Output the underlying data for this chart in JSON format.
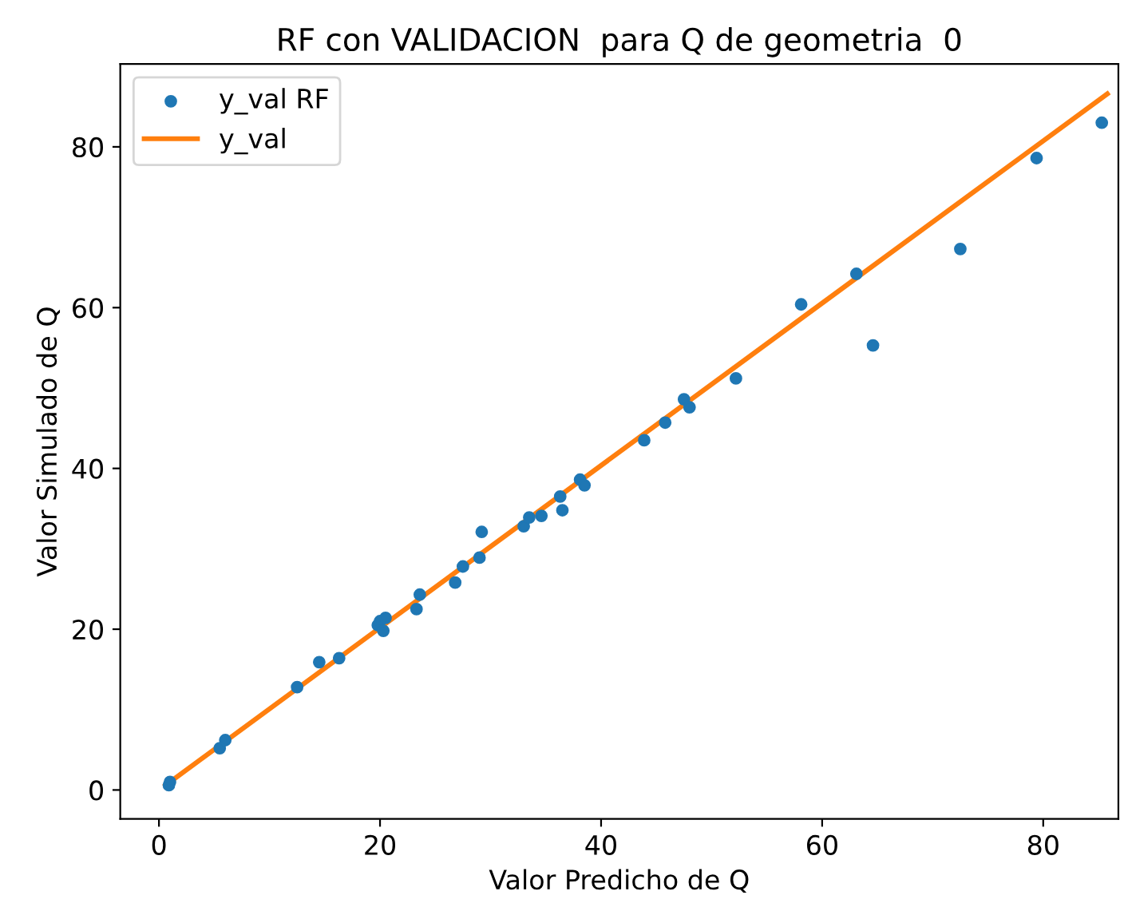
{
  "chart_data": {
    "type": "scatter",
    "title": "RF con VALIDACION  para Q de geometria  0",
    "xlabel": "Valor Predicho de Q",
    "ylabel": "Valor Simulado de Q",
    "xlim": [
      -3.5,
      86.8
    ],
    "ylim": [
      -3.6,
      90.3
    ],
    "xticks": [
      0,
      20,
      40,
      60,
      80
    ],
    "yticks": [
      0,
      20,
      40,
      60,
      80
    ],
    "grid": false,
    "legend": "top left",
    "series": [
      {
        "name": "y_val RF",
        "marker": "circle",
        "color": "#1f77b4",
        "x": [
          0.9,
          1.0,
          5.5,
          6.0,
          12.5,
          14.5,
          16.3,
          19.8,
          20.0,
          20.3,
          20.5,
          23.3,
          23.6,
          26.8,
          27.5,
          29.0,
          29.2,
          33.0,
          33.5,
          34.6,
          36.3,
          36.5,
          38.1,
          38.5,
          43.9,
          45.8,
          47.5,
          48.0,
          52.2,
          58.1,
          63.1,
          64.6,
          72.5,
          79.4,
          85.3
        ],
        "values": [
          0.6,
          1.0,
          5.2,
          6.2,
          12.8,
          15.9,
          16.4,
          20.5,
          21.0,
          19.8,
          21.4,
          22.5,
          24.3,
          25.8,
          27.8,
          28.9,
          32.1,
          32.8,
          33.9,
          34.1,
          36.5,
          34.8,
          38.6,
          37.9,
          43.5,
          45.7,
          48.6,
          47.6,
          51.2,
          60.4,
          64.2,
          55.3,
          67.3,
          78.6,
          83.0
        ]
      },
      {
        "name": "y_val",
        "type": "line",
        "marker": "none",
        "color": "#ff7f0e",
        "x": [
          0.6,
          85.8
        ],
        "values": [
          0.6,
          86.6
        ]
      }
    ]
  }
}
